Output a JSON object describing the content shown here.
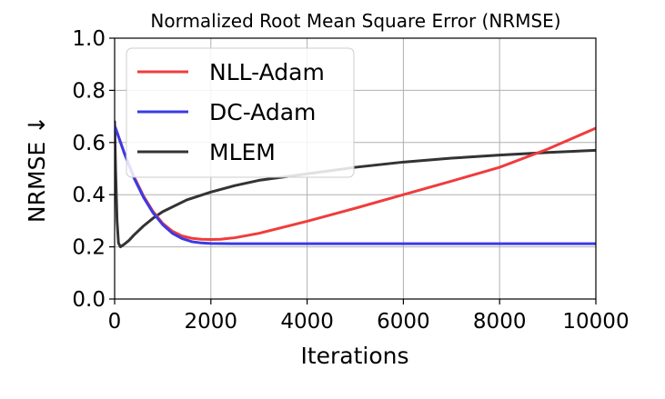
{
  "chart_data": {
    "type": "line",
    "title": "Normalized Root Mean Square Error (NRMSE)",
    "xlabel": "Iterations",
    "ylabel": "NRMSE ↓",
    "xlim": [
      0,
      10000
    ],
    "ylim": [
      0.0,
      1.0
    ],
    "xticks": [
      0,
      2000,
      4000,
      6000,
      8000,
      10000
    ],
    "xtick_labels": [
      "0",
      "2000",
      "4000",
      "6000",
      "8000",
      "10000"
    ],
    "yticks": [
      0.0,
      0.2,
      0.4,
      0.6,
      0.8,
      1.0
    ],
    "ytick_labels": [
      "0.0",
      "0.2",
      "0.4",
      "0.6",
      "0.8",
      "1.0"
    ],
    "grid": true,
    "legend_position": "upper-left",
    "series": [
      {
        "name": "NLL-Adam",
        "color": "#f03c3c",
        "x": [
          0,
          200,
          400,
          600,
          800,
          1000,
          1200,
          1400,
          1600,
          1800,
          2000,
          2200,
          2500,
          3000,
          4000,
          5000,
          6000,
          7000,
          8000,
          9000,
          10000
        ],
        "y": [
          0.665,
          0.56,
          0.47,
          0.395,
          0.335,
          0.29,
          0.26,
          0.242,
          0.233,
          0.229,
          0.228,
          0.229,
          0.235,
          0.252,
          0.298,
          0.348,
          0.4,
          0.452,
          0.505,
          0.575,
          0.655
        ]
      },
      {
        "name": "DC-Adam",
        "color": "#3a3ae6",
        "x": [
          0,
          200,
          400,
          600,
          800,
          1000,
          1200,
          1400,
          1600,
          1800,
          2000,
          2500,
          3000,
          4000,
          5000,
          6000,
          7000,
          8000,
          9000,
          10000
        ],
        "y": [
          0.665,
          0.56,
          0.465,
          0.39,
          0.33,
          0.285,
          0.252,
          0.232,
          0.22,
          0.215,
          0.213,
          0.212,
          0.212,
          0.212,
          0.212,
          0.212,
          0.212,
          0.212,
          0.212,
          0.212
        ]
      },
      {
        "name": "MLEM",
        "color": "#333333",
        "x": [
          0,
          20,
          50,
          80,
          120,
          200,
          300,
          400,
          600,
          800,
          1000,
          1500,
          2000,
          2500,
          3000,
          4000,
          5000,
          6000,
          7000,
          8000,
          9000,
          10000
        ],
        "y": [
          0.68,
          0.5,
          0.3,
          0.215,
          0.2,
          0.21,
          0.225,
          0.245,
          0.28,
          0.31,
          0.335,
          0.38,
          0.41,
          0.435,
          0.455,
          0.48,
          0.505,
          0.525,
          0.54,
          0.552,
          0.562,
          0.57
        ]
      }
    ]
  }
}
